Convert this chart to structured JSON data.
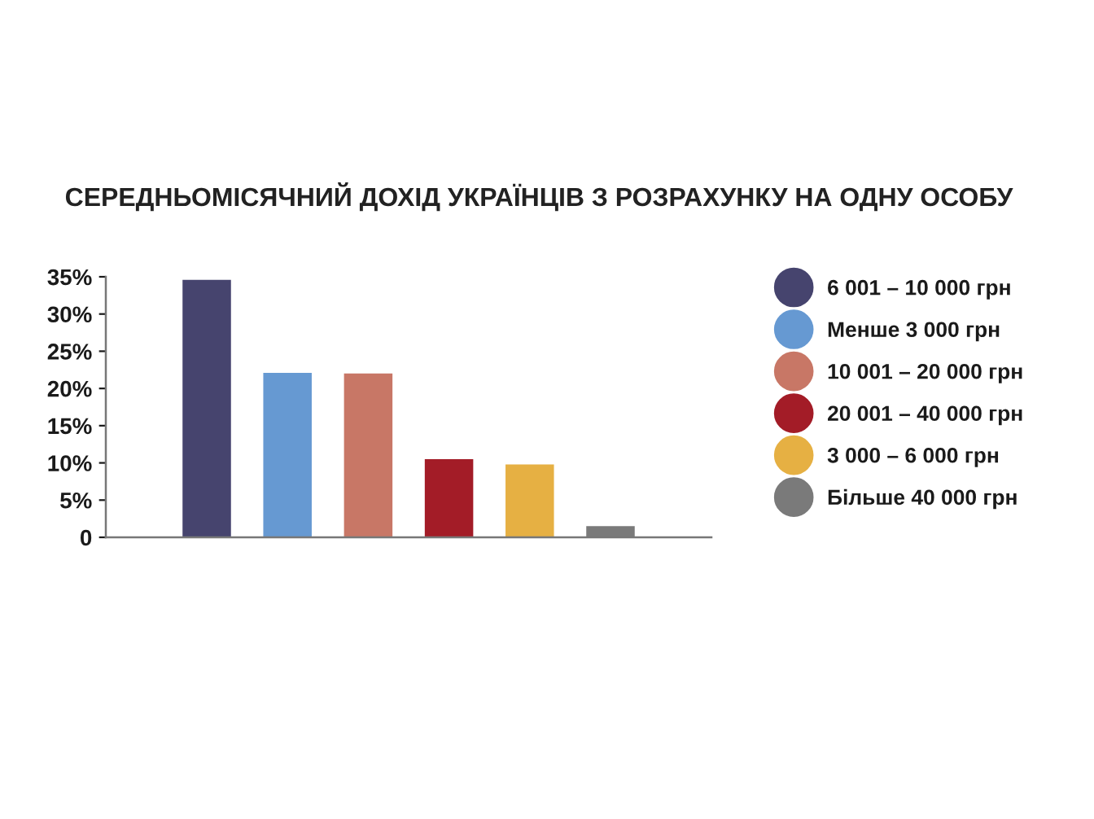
{
  "chart_data": {
    "type": "bar",
    "title": "СЕРЕДНЬОМІСЯЧНИЙ ДОХІД УКРАЇНЦІВ З РОЗРАХУНКУ НА ОДНУ ОСОБУ",
    "categories": [
      null,
      null,
      null,
      null,
      null,
      null
    ],
    "stacked": true,
    "series": [
      {
        "name": "6 001 – 10 000 грн",
        "color": "#46446e",
        "values": [
          34.6,
          null,
          null,
          null,
          null,
          null
        ]
      },
      {
        "name": "Менше 3 000 грн",
        "color": "#6699d2",
        "values": [
          null,
          22.1,
          null,
          null,
          null,
          null
        ]
      },
      {
        "name": "10 001 – 20 000 грн",
        "color": "#c87766",
        "values": [
          null,
          null,
          22.0,
          null,
          null,
          null
        ]
      },
      {
        "name": "20 001 – 40 000 грн",
        "color": "#a31c27",
        "values": [
          null,
          null,
          null,
          10.5,
          null,
          null
        ]
      },
      {
        "name": "3 000 – 6 000 грн",
        "color": "#e6b043",
        "values": [
          null,
          null,
          null,
          null,
          9.8,
          null
        ]
      },
      {
        "name": "Більше 40 000 грн",
        "color": "#7a7a7a",
        "values": [
          null,
          null,
          null,
          null,
          null,
          1.5
        ]
      }
    ],
    "ylim": [
      0,
      35
    ],
    "yticks": [
      0,
      {
        "value": 5,
        "label": "5%"
      },
      {
        "value": 10,
        "label": "10%"
      },
      {
        "value": 15,
        "label": "15%"
      },
      {
        "value": 20,
        "label": "20%"
      },
      {
        "value": 25,
        "label": "25%"
      },
      {
        "value": 30,
        "label": "30%"
      },
      {
        "value": 35,
        "label": "35%"
      }
    ],
    "grid": false,
    "legend": "right"
  }
}
